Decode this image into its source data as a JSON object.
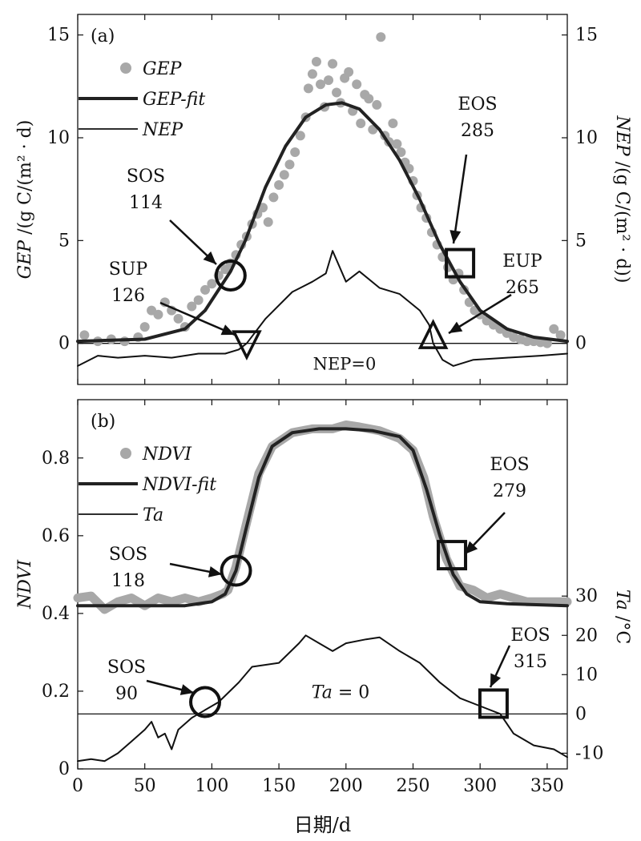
{
  "chart_data": [
    {
      "panel": "(a)",
      "type": "line",
      "xlim": [
        0,
        365
      ],
      "ylim": [
        -2,
        16
      ],
      "y2lim": [
        -2,
        16
      ],
      "x_ticks": [
        "0",
        "50",
        "100",
        "150",
        "200",
        "250",
        "300",
        "350"
      ],
      "y_ticks": [
        "0",
        "5",
        "10",
        "15"
      ],
      "y2_ticks": [
        "0",
        "5",
        "10",
        "15"
      ],
      "ylabel_main": "GEP",
      "ylabel_unit": " /(g C/(m² · d)",
      "y2label_main": "NEP",
      "y2label_unit": " /(g C/(m² · d))",
      "legend": {
        "placement": "top-left",
        "entries": [
          "GEP",
          "GEP-fit",
          "NEP"
        ]
      },
      "series": [
        {
          "name": "GEP",
          "kind": "scatter",
          "color": "#a8a8a8",
          "points": [
            [
              5,
              0.4
            ],
            [
              15,
              0.1
            ],
            [
              25,
              0.2
            ],
            [
              35,
              0.1
            ],
            [
              45,
              0.3
            ],
            [
              50,
              0.8
            ],
            [
              55,
              1.6
            ],
            [
              60,
              1.4
            ],
            [
              65,
              2.0
            ],
            [
              70,
              1.6
            ],
            [
              75,
              1.2
            ],
            [
              80,
              0.8
            ],
            [
              85,
              1.8
            ],
            [
              90,
              2.1
            ],
            [
              95,
              2.6
            ],
            [
              100,
              2.9
            ],
            [
              105,
              3.3
            ],
            [
              110,
              3.6
            ],
            [
              114,
              3.9
            ],
            [
              118,
              4.3
            ],
            [
              122,
              4.8
            ],
            [
              126,
              5.2
            ],
            [
              130,
              5.8
            ],
            [
              134,
              6.3
            ],
            [
              138,
              6.6
            ],
            [
              142,
              5.9
            ],
            [
              146,
              7.1
            ],
            [
              150,
              7.7
            ],
            [
              154,
              8.2
            ],
            [
              158,
              8.7
            ],
            [
              162,
              9.3
            ],
            [
              166,
              10.1
            ],
            [
              170,
              11.0
            ],
            [
              172,
              12.4
            ],
            [
              175,
              13.1
            ],
            [
              178,
              13.7
            ],
            [
              181,
              12.6
            ],
            [
              184,
              11.5
            ],
            [
              187,
              12.8
            ],
            [
              190,
              13.6
            ],
            [
              193,
              12.2
            ],
            [
              196,
              11.7
            ],
            [
              199,
              12.9
            ],
            [
              202,
              13.2
            ],
            [
              205,
              11.3
            ],
            [
              208,
              12.6
            ],
            [
              211,
              10.7
            ],
            [
              214,
              12.1
            ],
            [
              217,
              11.9
            ],
            [
              220,
              10.4
            ],
            [
              223,
              11.6
            ],
            [
              226,
              14.9
            ],
            [
              229,
              10.1
            ],
            [
              232,
              9.8
            ],
            [
              235,
              10.7
            ],
            [
              238,
              9.7
            ],
            [
              241,
              9.3
            ],
            [
              244,
              8.8
            ],
            [
              247,
              8.5
            ],
            [
              250,
              7.9
            ],
            [
              253,
              7.2
            ],
            [
              256,
              6.6
            ],
            [
              260,
              6.1
            ],
            [
              264,
              5.4
            ],
            [
              268,
              4.8
            ],
            [
              272,
              4.2
            ],
            [
              276,
              3.7
            ],
            [
              280,
              3.1
            ],
            [
              284,
              3.4
            ],
            [
              288,
              2.6
            ],
            [
              292,
              2.0
            ],
            [
              296,
              1.6
            ],
            [
              300,
              1.4
            ],
            [
              305,
              1.1
            ],
            [
              310,
              0.9
            ],
            [
              315,
              0.7
            ],
            [
              320,
              0.5
            ],
            [
              325,
              0.3
            ],
            [
              330,
              0.2
            ],
            [
              335,
              0.1
            ],
            [
              340,
              0.1
            ],
            [
              345,
              0.05
            ],
            [
              350,
              0.0
            ],
            [
              355,
              0.7
            ],
            [
              360,
              0.4
            ]
          ]
        },
        {
          "name": "GEP-fit",
          "kind": "line",
          "color": "#222222",
          "points": [
            [
              0,
              0.1
            ],
            [
              50,
              0.2
            ],
            [
              80,
              0.7
            ],
            [
              95,
              1.6
            ],
            [
              105,
              2.6
            ],
            [
              114,
              3.5
            ],
            [
              125,
              5.0
            ],
            [
              140,
              7.6
            ],
            [
              155,
              9.6
            ],
            [
              170,
              11.0
            ],
            [
              185,
              11.6
            ],
            [
              197,
              11.7
            ],
            [
              210,
              11.4
            ],
            [
              225,
              10.4
            ],
            [
              240,
              8.9
            ],
            [
              255,
              7.0
            ],
            [
              270,
              4.8
            ],
            [
              285,
              3.0
            ],
            [
              300,
              1.6
            ],
            [
              320,
              0.7
            ],
            [
              340,
              0.3
            ],
            [
              365,
              0.1
            ]
          ]
        },
        {
          "name": "NEP",
          "kind": "line",
          "color": "#111111",
          "points": [
            [
              0,
              -1.1
            ],
            [
              15,
              -0.6
            ],
            [
              30,
              -0.7
            ],
            [
              50,
              -0.6
            ],
            [
              70,
              -0.7
            ],
            [
              90,
              -0.5
            ],
            [
              110,
              -0.5
            ],
            [
              120,
              -0.3
            ],
            [
              126,
              0.0
            ],
            [
              140,
              1.2
            ],
            [
              160,
              2.5
            ],
            [
              175,
              3.0
            ],
            [
              185,
              3.4
            ],
            [
              190,
              4.5
            ],
            [
              200,
              3.0
            ],
            [
              210,
              3.5
            ],
            [
              225,
              2.7
            ],
            [
              240,
              2.4
            ],
            [
              255,
              1.6
            ],
            [
              262,
              0.9
            ],
            [
              265,
              0.0
            ],
            [
              272,
              -0.8
            ],
            [
              280,
              -1.1
            ],
            [
              295,
              -0.8
            ],
            [
              320,
              -0.7
            ],
            [
              345,
              -0.6
            ],
            [
              365,
              -0.5
            ]
          ]
        }
      ],
      "reference_line": {
        "y": 0,
        "label": "NEP=0"
      },
      "annotations": [
        {
          "label": "SOS",
          "value": "114",
          "x": 114,
          "y": 3.3,
          "marker": "circle"
        },
        {
          "label": "SUP",
          "value": "126",
          "x": 126,
          "y": 0.1,
          "marker": "triangle-down"
        },
        {
          "label": "EOS",
          "value": "285",
          "x": 285,
          "y": 3.9,
          "marker": "square"
        },
        {
          "label": "EUP",
          "value": "265",
          "x": 265,
          "y": 0.1,
          "marker": "triangle-up"
        }
      ]
    },
    {
      "panel": "(b)",
      "type": "line",
      "xlim": [
        0,
        365
      ],
      "ylim": [
        0,
        0.95
      ],
      "y2lim": [
        -14,
        80
      ],
      "x_ticks": [
        "0",
        "50",
        "100",
        "150",
        "200",
        "250",
        "300",
        "350"
      ],
      "y_ticks": [
        "0",
        "0.2",
        "0.4",
        "0.6",
        "0.8"
      ],
      "y2_ticks": [
        "-10",
        "0",
        "10",
        "20",
        "30"
      ],
      "xlabel": "日期/d",
      "ylabel_main": "NDVI",
      "y2label_main": "Ta",
      "y2label_unit": " /°C",
      "legend": {
        "placement": "top-left",
        "entries": [
          "NDVI",
          "NDVI-fit",
          "Ta"
        ]
      },
      "series": [
        {
          "name": "NDVI",
          "kind": "line",
          "color": "#a8a8a8",
          "points": [
            [
              0,
              0.44
            ],
            [
              10,
              0.445
            ],
            [
              20,
              0.41
            ],
            [
              30,
              0.43
            ],
            [
              40,
              0.44
            ],
            [
              50,
              0.42
            ],
            [
              60,
              0.44
            ],
            [
              70,
              0.43
            ],
            [
              80,
              0.44
            ],
            [
              90,
              0.43
            ],
            [
              100,
              0.44
            ],
            [
              108,
              0.45
            ],
            [
              112,
              0.46
            ],
            [
              118,
              0.52
            ],
            [
              125,
              0.62
            ],
            [
              135,
              0.76
            ],
            [
              145,
              0.83
            ],
            [
              160,
              0.865
            ],
            [
              175,
              0.875
            ],
            [
              190,
              0.875
            ],
            [
              200,
              0.885
            ],
            [
              210,
              0.88
            ],
            [
              225,
              0.87
            ],
            [
              240,
              0.85
            ],
            [
              250,
              0.82
            ],
            [
              258,
              0.75
            ],
            [
              265,
              0.65
            ],
            [
              275,
              0.54
            ],
            [
              285,
              0.47
            ],
            [
              295,
              0.46
            ],
            [
              305,
              0.44
            ],
            [
              315,
              0.45
            ],
            [
              325,
              0.44
            ],
            [
              335,
              0.43
            ],
            [
              345,
              0.43
            ],
            [
              365,
              0.43
            ]
          ]
        },
        {
          "name": "NDVI-fit",
          "kind": "line",
          "color": "#222222",
          "points": [
            [
              0,
              0.42
            ],
            [
              80,
              0.42
            ],
            [
              100,
              0.43
            ],
            [
              110,
              0.45
            ],
            [
              118,
              0.51
            ],
            [
              125,
              0.61
            ],
            [
              135,
              0.75
            ],
            [
              145,
              0.83
            ],
            [
              160,
              0.865
            ],
            [
              180,
              0.875
            ],
            [
              200,
              0.875
            ],
            [
              220,
              0.87
            ],
            [
              240,
              0.855
            ],
            [
              250,
              0.82
            ],
            [
              260,
              0.72
            ],
            [
              270,
              0.6
            ],
            [
              280,
              0.5
            ],
            [
              290,
              0.45
            ],
            [
              300,
              0.43
            ],
            [
              320,
              0.425
            ],
            [
              365,
              0.42
            ]
          ]
        },
        {
          "name": "Ta",
          "kind": "line",
          "color": "#111111",
          "axis": "right",
          "points": [
            [
              0,
              -12
            ],
            [
              10,
              -11.5
            ],
            [
              20,
              -12
            ],
            [
              30,
              -10
            ],
            [
              40,
              -7
            ],
            [
              50,
              -4
            ],
            [
              55,
              -2
            ],
            [
              60,
              -6
            ],
            [
              65,
              -5
            ],
            [
              70,
              -9
            ],
            [
              75,
              -4
            ],
            [
              85,
              -1
            ],
            [
              90,
              0
            ],
            [
              95,
              1
            ],
            [
              105,
              3
            ],
            [
              120,
              8
            ],
            [
              130,
              12
            ],
            [
              150,
              13
            ],
            [
              165,
              18
            ],
            [
              170,
              20
            ],
            [
              180,
              18
            ],
            [
              190,
              16
            ],
            [
              200,
              18
            ],
            [
              215,
              19
            ],
            [
              225,
              19.5
            ],
            [
              240,
              16
            ],
            [
              255,
              13
            ],
            [
              270,
              8
            ],
            [
              285,
              4
            ],
            [
              300,
              2
            ],
            [
              315,
              0
            ],
            [
              325,
              -5
            ],
            [
              340,
              -8
            ],
            [
              355,
              -9
            ],
            [
              365,
              -11
            ]
          ]
        }
      ],
      "reference_line": {
        "y": 0,
        "label": "Ta = 0"
      },
      "annotations": [
        {
          "label": "SOS",
          "value": "118",
          "x": 118,
          "y": 0.51,
          "marker": "circle"
        },
        {
          "label": "EOS",
          "value": "279",
          "x": 279,
          "y": 0.55,
          "marker": "square"
        },
        {
          "label": "SOS",
          "value": "90",
          "x": 95,
          "y": 0.172,
          "marker": "circle"
        },
        {
          "label": "EOS",
          "value": "315",
          "x": 310,
          "y": 0.168,
          "marker": "square"
        }
      ]
    }
  ]
}
